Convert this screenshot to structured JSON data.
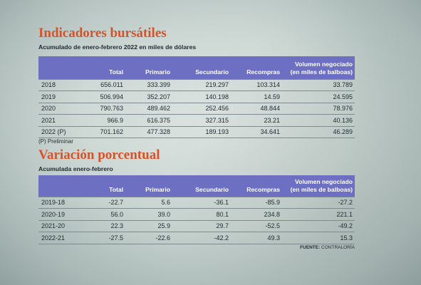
{
  "section1": {
    "title": "Indicadores bursátiles",
    "subtitle": "Acumulado de enero-febrero 2022 en miles de dólares",
    "headers": [
      "",
      "Total",
      "Primario",
      "Secundario",
      "Recompras",
      "Volumen negociado",
      "(en miles de balboas)"
    ],
    "rows": [
      [
        "2018",
        "656.011",
        "333.399",
        "219.297",
        "103.314",
        "33.789"
      ],
      [
        "2019",
        "506.994",
        "352.207",
        "140.198",
        "14.59",
        "24.595"
      ],
      [
        "2020",
        "790.763",
        "489.462",
        "252.456",
        "48.844",
        "78.976"
      ],
      [
        "2021",
        "966.9",
        "616.375",
        "327.315",
        "23.21",
        "40.136"
      ],
      [
        "2022 (P)",
        "701.162",
        "477.328",
        "189.193",
        "34.641",
        "46.289"
      ]
    ],
    "note": "(P) Preliminar"
  },
  "section2": {
    "title": "Variación porcentual",
    "subtitle": "Acumulada enero-febrero",
    "headers": [
      "",
      "Total",
      "Primario",
      "Secundario",
      "Recompras",
      "Volumen negociado",
      "(en miles de balboas)"
    ],
    "rows": [
      [
        "2019-18",
        "-22.7",
        "5.6",
        "-36.1",
        "-85.9",
        "-27.2"
      ],
      [
        "2020-19",
        "56.0",
        "39.0",
        "80.1",
        "234.8",
        "221.1"
      ],
      [
        "2021-20",
        "22.3",
        "25.9",
        "29.7",
        "-52.5",
        "-49.2"
      ],
      [
        "2022-21",
        "-27.5",
        "-22.6",
        "-42.2",
        "49.3",
        "15.3"
      ]
    ]
  },
  "source": {
    "label": "FUENTE:",
    "value": "CONTRALORÍA"
  }
}
